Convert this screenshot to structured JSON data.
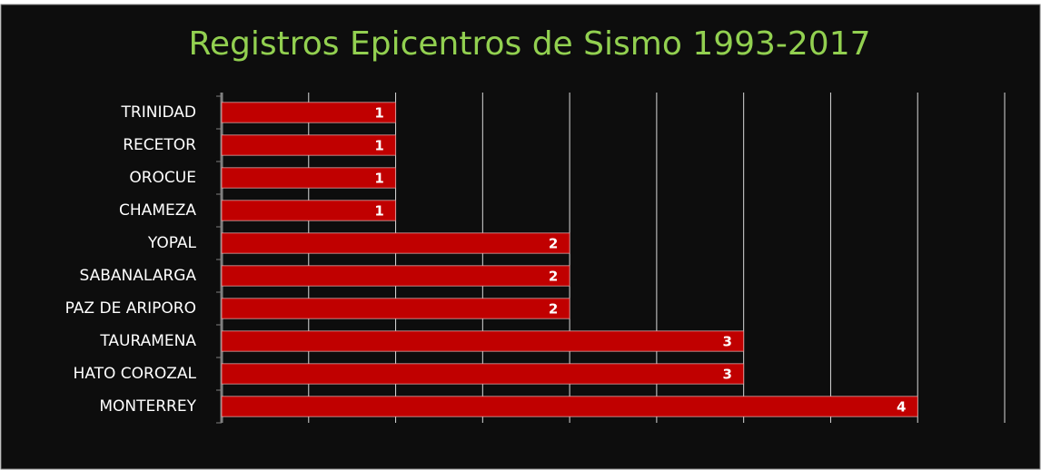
{
  "chart_data": {
    "type": "bar",
    "orientation": "horizontal",
    "title": "Registros Epicentros de Sismo 1993-2017",
    "categories": [
      "TRINIDAD",
      "RECETOR",
      "OROCUE",
      "CHAMEZA",
      "YOPAL",
      "SABANALARGA",
      "PAZ DE ARIPORO",
      "TAURAMENA",
      "HATO COROZAL",
      "MONTERREY"
    ],
    "values": [
      1,
      1,
      1,
      1,
      2,
      2,
      2,
      3,
      3,
      4
    ],
    "color": "#c00000",
    "xlim": [
      0,
      4.5
    ],
    "xticks": [
      0,
      0.5,
      1,
      1.5,
      2,
      2.5,
      3,
      3.5,
      4,
      4.5
    ],
    "grid": true
  }
}
